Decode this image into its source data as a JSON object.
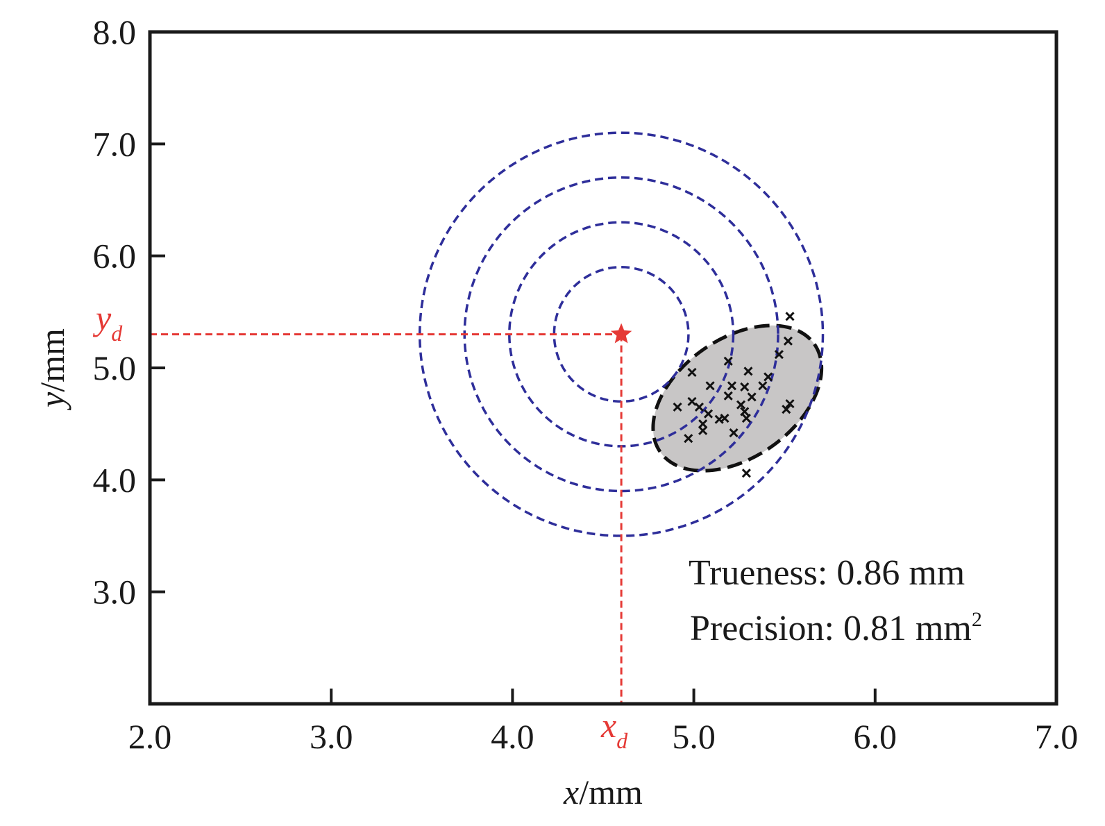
{
  "chart_data": {
    "type": "scatter",
    "xlabel": {
      "var": "x",
      "unit": "/mm"
    },
    "ylabel": {
      "var": "y",
      "unit": "/mm"
    },
    "xlim": [
      2.0,
      7.0
    ],
    "ylim": [
      2.0,
      8.0
    ],
    "x_ticks": [
      2.0,
      3.0,
      4.0,
      5.0,
      6.0,
      7.0
    ],
    "x_tick_labels": [
      "2.0",
      "3.0",
      "4.0",
      "5.0",
      "6.0",
      "7.0"
    ],
    "y_ticks": [
      3.0,
      4.0,
      5.0,
      6.0,
      7.0,
      8.0
    ],
    "y_tick_labels": [
      "3.0",
      "4.0",
      "5.0",
      "6.0",
      "7.0",
      "8.0"
    ],
    "grid": false,
    "target": {
      "x": 4.6,
      "y": 5.3,
      "x_label": "x",
      "y_label": "y",
      "subscript": "d",
      "color": "#e53935"
    },
    "target_rings": {
      "radii_y_units": [
        0.6,
        1.0,
        1.4,
        1.8
      ],
      "color": "#2e2e9a"
    },
    "confidence_ellipse": {
      "center": [
        5.24,
        4.73
      ],
      "semi_major_y_units": 0.84,
      "semi_minor_y_units": 0.53,
      "angle_deg": 35,
      "fill": "#c8c6c6",
      "stroke": "#111111"
    },
    "points": [
      [
        5.53,
        5.46
      ],
      [
        5.52,
        5.24
      ],
      [
        5.47,
        5.12
      ],
      [
        5.19,
        5.06
      ],
      [
        4.99,
        4.96
      ],
      [
        5.3,
        4.97
      ],
      [
        5.41,
        4.92
      ],
      [
        5.38,
        4.84
      ],
      [
        5.09,
        4.84
      ],
      [
        5.21,
        4.84
      ],
      [
        5.28,
        4.83
      ],
      [
        5.19,
        4.75
      ],
      [
        5.32,
        4.74
      ],
      [
        4.91,
        4.65
      ],
      [
        4.99,
        4.7
      ],
      [
        5.03,
        4.65
      ],
      [
        5.26,
        4.67
      ],
      [
        5.28,
        4.61
      ],
      [
        5.53,
        4.68
      ],
      [
        5.51,
        4.63
      ],
      [
        5.08,
        4.59
      ],
      [
        5.14,
        4.54
      ],
      [
        5.17,
        4.55
      ],
      [
        5.29,
        4.55
      ],
      [
        5.05,
        4.5
      ],
      [
        5.05,
        4.44
      ],
      [
        5.22,
        4.42
      ],
      [
        4.97,
        4.37
      ],
      [
        5.29,
        4.06
      ]
    ],
    "annotations": {
      "trueness": "Trueness: 0.86 mm",
      "precision": "Precision: 0.81 mm",
      "precision_sup": "2"
    }
  }
}
